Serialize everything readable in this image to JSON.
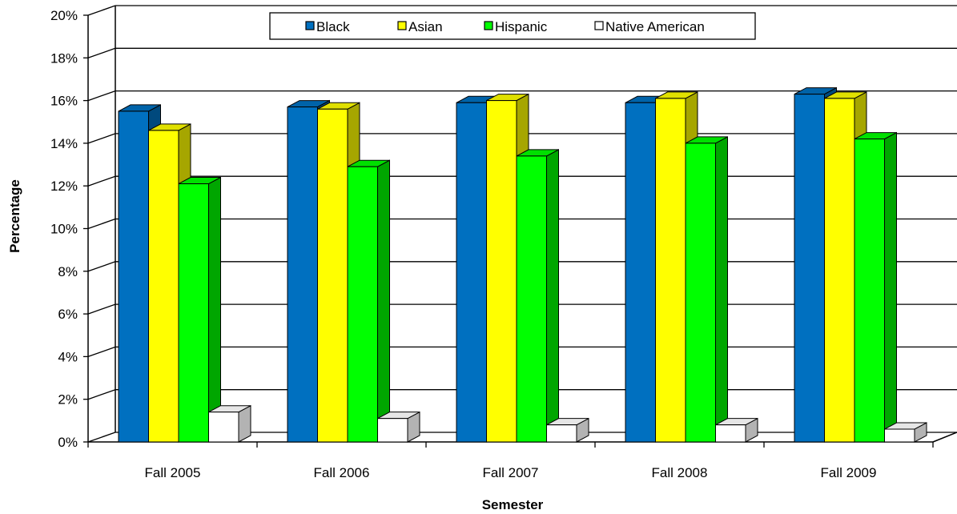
{
  "chart_data": {
    "type": "bar",
    "style": "3d-clustered",
    "categories": [
      "Fall 2005",
      "Fall 2006",
      "Fall 2007",
      "Fall 2008",
      "Fall 2009"
    ],
    "series": [
      {
        "name": "Black",
        "values": [
          15.5,
          15.7,
          15.9,
          15.9,
          16.3
        ],
        "color": "#0070C0"
      },
      {
        "name": "Asian",
        "values": [
          14.6,
          15.6,
          16.0,
          16.1,
          16.1
        ],
        "color": "#FFFF00"
      },
      {
        "name": "Hispanic",
        "values": [
          12.1,
          12.9,
          13.4,
          14.0,
          14.2
        ],
        "color": "#00FF00"
      },
      {
        "name": "Native American",
        "values": [
          1.4,
          1.1,
          0.8,
          0.8,
          0.6
        ],
        "color": "#FFFFFF"
      }
    ],
    "xlabel": "Semester",
    "ylabel": "Percentage",
    "ylim": [
      0,
      20
    ],
    "yticks": [
      "0%",
      "2%",
      "4%",
      "6%",
      "8%",
      "10%",
      "12%",
      "14%",
      "16%",
      "18%",
      "20%"
    ],
    "grid": true,
    "legend": "top-center"
  }
}
